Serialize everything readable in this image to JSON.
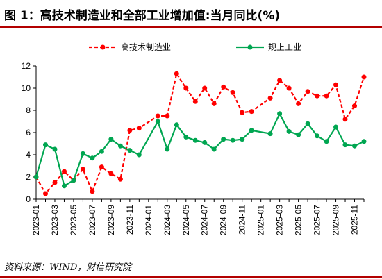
{
  "title": "图 1：高技术制造业和全部工业增加值:当月同比(%)",
  "source": "资料来源：WIND，财信研究院",
  "colors": {
    "rule": "#b30000",
    "series_a": "#ff0000",
    "series_b": "#00a651"
  },
  "chart_data": {
    "type": "line",
    "x": [
      "2023-01",
      "2023-02",
      "2023-03",
      "2023-04",
      "2023-05",
      "2023-06",
      "2023-07",
      "2023-08",
      "2023-09",
      "2023-10",
      "2023-11",
      "2023-12",
      "2024-01",
      "2024-02",
      "2024-03",
      "2024-04",
      "2024-05",
      "2024-06",
      "2024-07",
      "2024-08",
      "2024-09",
      "2024-10",
      "2024-11",
      "2024-12",
      "2025-01",
      "2025-02",
      "2025-03",
      "2025-04",
      "2025-05",
      "2025-06",
      "2025-07",
      "2025-08",
      "2025-09",
      "2025-10",
      "2025-11",
      "2025-12"
    ],
    "x_tick_labels": [
      "2023-01",
      "2023-03",
      "2023-05",
      "2023-07",
      "2023-09",
      "2023-11",
      "2024-01",
      "2024-03",
      "2024-05",
      "2024-07",
      "2024-09",
      "2024-11",
      "2025-01",
      "2025-03",
      "2025-05",
      "2025-07",
      "2025-09",
      "2025-11"
    ],
    "ylim": [
      0,
      12
    ],
    "yticks": [
      0,
      2,
      4,
      6,
      8,
      10,
      12
    ],
    "legend_position": "top",
    "series": [
      {
        "name": "高技术制造业",
        "style": "dashed",
        "color": "#ff0000",
        "values": [
          2.0,
          0.5,
          1.5,
          2.5,
          1.7,
          2.7,
          0.7,
          2.9,
          2.3,
          1.8,
          6.2,
          6.4,
          null,
          7.5,
          7.5,
          11.3,
          10.0,
          8.8,
          10.0,
          8.6,
          10.1,
          9.6,
          7.8,
          7.9,
          null,
          9.1,
          10.7,
          10.0,
          8.6,
          9.7,
          9.3,
          9.3,
          10.3,
          7.2,
          8.4,
          11.0
        ]
      },
      {
        "name": "规上工业",
        "style": "solid",
        "color": "#00a651",
        "values": [
          2.0,
          4.9,
          4.5,
          1.2,
          1.7,
          4.1,
          3.7,
          4.3,
          5.4,
          4.8,
          4.4,
          4.0,
          null,
          7.0,
          4.5,
          6.7,
          5.6,
          5.3,
          5.1,
          4.5,
          5.4,
          5.3,
          5.4,
          6.2,
          null,
          5.9,
          7.7,
          6.1,
          5.8,
          6.8,
          5.7,
          5.2,
          6.5,
          4.9,
          4.8,
          5.2
        ]
      }
    ]
  }
}
